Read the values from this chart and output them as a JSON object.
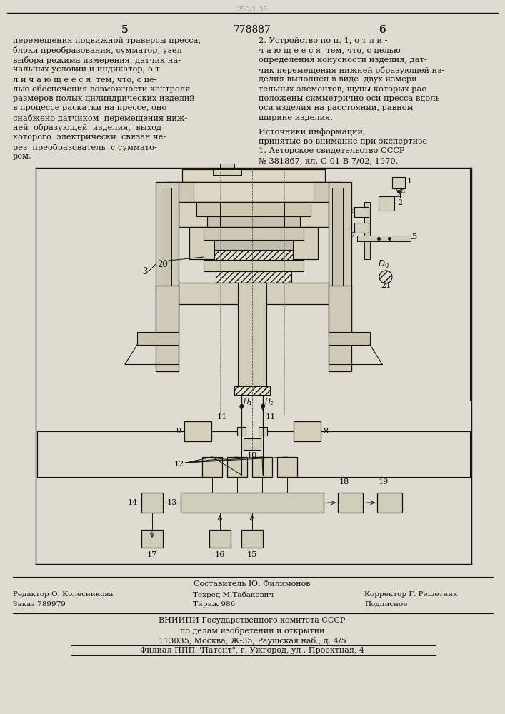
{
  "bg_color": "#e0dbd0",
  "page_color": "#f0ede4",
  "text_color": "#111111",
  "header_number": "778887",
  "left_page": "5",
  "right_page": "6",
  "top_stamp": "250/1.35",
  "left_text_lines": [
    "перемещения подвижной траверсы пресса,",
    "блоки преобразования, сумматор, узел",
    "выбора режима измерения, датчик на-",
    "чальных условий и индикатор, о т-",
    "л и ч а ю щ е е с я  тем, что, с це-",
    "лью обеспечения возможности контроля",
    "размеров полых цилиндрических изделий",
    "в процессе раскатки на прессе, оно",
    "снабжено датчиком  перемещения ниж-",
    "ней  образующей  изделия,  выход",
    "которого  электрически  связан че-",
    "рез  преобразователь  с суммато-",
    "ром."
  ],
  "right_text_lines": [
    "2. Устройство по п. 1, о т л и -",
    "ч а ю щ е е с я  тем, что, с целью",
    "определения конусности изделия, дат-",
    "чик перемещения нижней образующей из-",
    "делия выполнен в виде  двух измери-",
    "тельных элементов, щупы которых рас-",
    "положены симметрично оси пресса вдоль",
    "оси изделия на расстоянии, равном",
    "ширине изделия."
  ],
  "sources_header": "Источники информации,",
  "sources_line2": "принятые во внимание при экспертизе",
  "sources_line3": "1. Авторское свидетельство СССР",
  "sources_line4": "№ 381867, кл. G 01 B 7/02, 1970.",
  "footer_sestavitel": "Составитель Ю. Филимонов",
  "footer_redaktor": "Редактор О. Колесникова",
  "footer_tehred": "Техред М.Табакович",
  "footer_korrektor": "Корректор Г. Решетник",
  "footer_zakaz": "Заказ 789979",
  "footer_tirazh": "Тираж 986",
  "footer_podpisnoe": "Подписное",
  "footer_vniip": "ВНИИПИ Государственного комитета СССР",
  "footer_po_delam": "по делам изобретений и открытий",
  "footer_address": "113035, Москва, Ж-35, Раушская наб., д. 4/5",
  "footer_filial": "Филиал ППП \"Патент\", г. Ужгород, ул . Проектная, 4"
}
